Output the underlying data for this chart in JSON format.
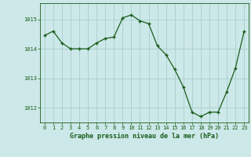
{
  "x": [
    0,
    1,
    2,
    3,
    4,
    5,
    6,
    7,
    8,
    9,
    10,
    11,
    12,
    13,
    14,
    15,
    16,
    17,
    18,
    19,
    20,
    21,
    22,
    23
  ],
  "y": [
    1014.45,
    1014.6,
    1014.2,
    1014.0,
    1014.0,
    1014.0,
    1014.2,
    1014.35,
    1014.4,
    1015.05,
    1015.15,
    1014.95,
    1014.85,
    1014.1,
    1013.8,
    1013.3,
    1012.7,
    1011.85,
    1011.7,
    1011.85,
    1011.85,
    1012.55,
    1013.35,
    1014.6
  ],
  "line_color": "#1a5c1a",
  "marker": "+",
  "bg_color": "#cce8e8",
  "grid_color": "#aacece",
  "xlabel": "Graphe pression niveau de la mer (hPa)",
  "xlabel_color": "#1a5c1a",
  "tick_color": "#1a5c1a",
  "axis_color": "#1a5c1a",
  "ylim": [
    1011.5,
    1015.55
  ],
  "yticks": [
    1012,
    1013,
    1014,
    1015
  ],
  "xticks": [
    0,
    1,
    2,
    3,
    4,
    5,
    6,
    7,
    8,
    9,
    10,
    11,
    12,
    13,
    14,
    15,
    16,
    17,
    18,
    19,
    20,
    21,
    22,
    23
  ]
}
